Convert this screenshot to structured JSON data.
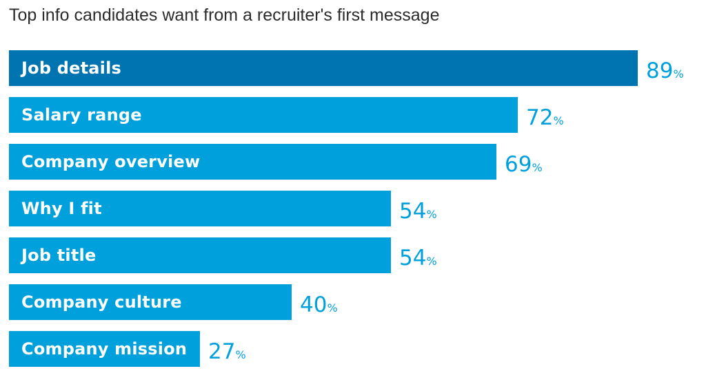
{
  "chart_data": {
    "type": "bar",
    "orientation": "horizontal",
    "title": "Top info candidates want from a recruiter's first message",
    "categories": [
      "Job details",
      "Salary range",
      "Company overview",
      "Why I fit",
      "Job title",
      "Company culture",
      "Company mission"
    ],
    "values": [
      89,
      72,
      69,
      54,
      54,
      40,
      27
    ],
    "value_suffix": "%",
    "xlim": [
      0,
      100
    ],
    "grid": false,
    "colors": {
      "highlight": "#0073b1",
      "default": "#00a0dc",
      "value_text": "#00a0dc",
      "label_text": "#ffffff",
      "title_text": "#2b2b2b"
    }
  }
}
